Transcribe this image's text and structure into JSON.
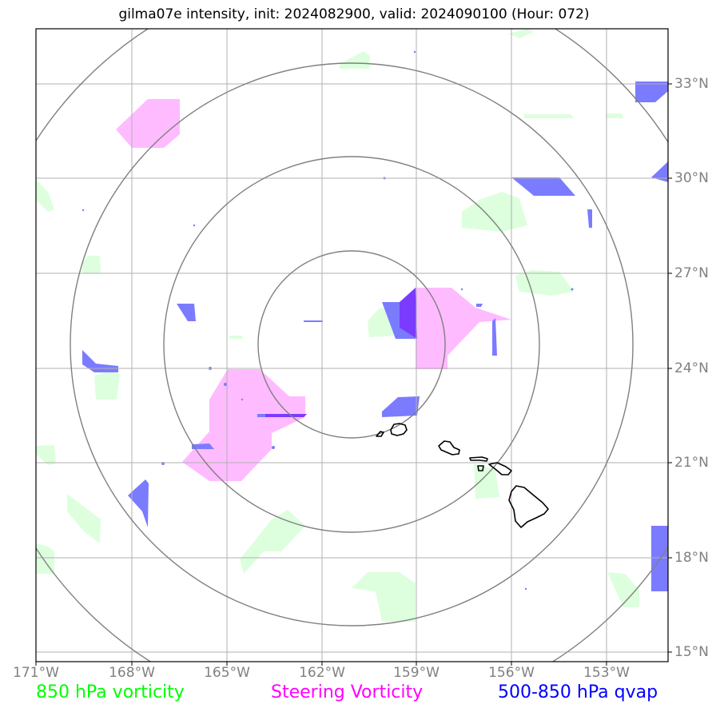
{
  "title": "gilma07e intensity, init: 2024082900, valid: 2024090100 (Hour: 072)",
  "lon_labels": [
    "171°W",
    "168°W",
    "165°W",
    "162°W",
    "159°W",
    "156°W",
    "153°W"
  ],
  "lat_labels": [
    "33°N",
    "30°N",
    "27°N",
    "24°N",
    "21°N",
    "18°N",
    "15°N"
  ],
  "legend": [
    {
      "label": "850 hPa vorticity",
      "color": "#00ff00"
    },
    {
      "label": "Steering Vorticity",
      "color": "#ff00ff"
    },
    {
      "label": "500-850 hPa qvap",
      "color": "#0000ff"
    }
  ],
  "colors": {
    "vorticity_850_fill": "#ddffdd",
    "steering_vorticity_fill": "#ffbbff",
    "qvap_fill": "#7b7bff",
    "overlap_fill": "#7b3bff",
    "range_rings": "#808080",
    "gridlines": "#b0b0b0",
    "coastline": "#000000"
  }
}
